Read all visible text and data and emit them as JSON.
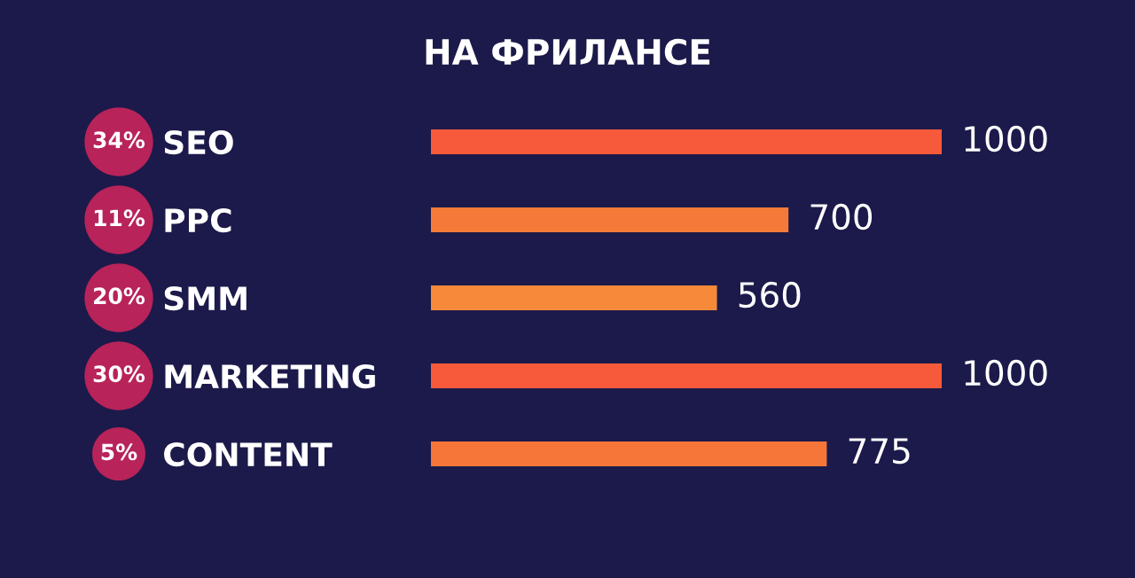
{
  "chart_data": {
    "type": "bar",
    "orientation": "horizontal",
    "title": "НА ФРИЛАНСЕ",
    "categories": [
      "SEO",
      "PPC",
      "SMM",
      "MARKETING",
      "CONTENT"
    ],
    "values": [
      1000,
      700,
      560,
      1000,
      775
    ],
    "colors": [
      "#f65a3a",
      "#f57a3a",
      "#f68a3a",
      "#f65a3a",
      "#f6763a"
    ],
    "data_labels": true,
    "tick_labels": "y",
    "grid": false,
    "legend": false,
    "annotations": [
      "34%",
      "11%",
      "20%",
      "30%",
      "5%"
    ]
  }
}
